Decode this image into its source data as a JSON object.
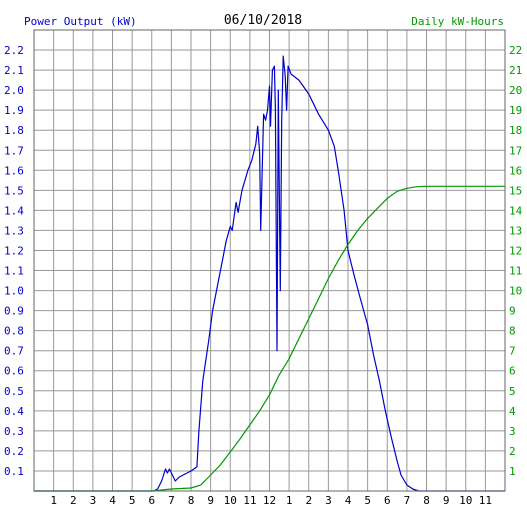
{
  "chart_data": {
    "type": "line",
    "title": "06/10/2018",
    "left_axis_label": "Power Output (kW)",
    "right_axis_label": "Daily kW-Hours",
    "x_tick_labels": [
      "1",
      "2",
      "3",
      "4",
      "5",
      "6",
      "7",
      "8",
      "9",
      "10",
      "11",
      "12",
      "1",
      "2",
      "3",
      "4",
      "5",
      "6",
      "7",
      "8",
      "9",
      "10",
      "11"
    ],
    "xlim": [
      0,
      24
    ],
    "ylim_left": [
      0,
      2.3
    ],
    "ylim_right": [
      0,
      23
    ],
    "left_ticks": [
      "0.1",
      "0.2",
      "0.3",
      "0.4",
      "0.5",
      "0.6",
      "0.7",
      "0.8",
      "0.9",
      "1.0",
      "1.1",
      "1.2",
      "1.3",
      "1.4",
      "1.5",
      "1.6",
      "1.7",
      "1.8",
      "1.9",
      "2.0",
      "2.1",
      "2.2"
    ],
    "right_ticks": [
      "1",
      "2",
      "3",
      "4",
      "5",
      "6",
      "7",
      "8",
      "9",
      "10",
      "11",
      "12",
      "13",
      "14",
      "15",
      "16",
      "17",
      "18",
      "19",
      "20",
      "21",
      "22"
    ],
    "grid": true,
    "colors": {
      "power": "#0000cc",
      "energy": "#009900",
      "grid": "#999999",
      "frame": "#666666"
    },
    "series": [
      {
        "axis": "left",
        "color": "#0000cc",
        "points": [
          [
            0,
            0
          ],
          [
            6.1,
            0
          ],
          [
            6.3,
            0.01
          ],
          [
            6.5,
            0.05
          ],
          [
            6.7,
            0.11
          ],
          [
            6.8,
            0.09
          ],
          [
            6.9,
            0.11
          ],
          [
            7.0,
            0.09
          ],
          [
            7.2,
            0.05
          ],
          [
            7.4,
            0.07
          ],
          [
            7.6,
            0.08
          ],
          [
            7.8,
            0.09
          ],
          [
            8.0,
            0.1
          ],
          [
            8.3,
            0.12
          ],
          [
            8.4,
            0.3
          ],
          [
            8.6,
            0.55
          ],
          [
            8.9,
            0.75
          ],
          [
            9.1,
            0.9
          ],
          [
            9.4,
            1.05
          ],
          [
            9.6,
            1.15
          ],
          [
            9.8,
            1.25
          ],
          [
            10.0,
            1.32
          ],
          [
            10.1,
            1.3
          ],
          [
            10.3,
            1.44
          ],
          [
            10.4,
            1.39
          ],
          [
            10.6,
            1.5
          ],
          [
            10.9,
            1.6
          ],
          [
            11.1,
            1.65
          ],
          [
            11.3,
            1.73
          ],
          [
            11.4,
            1.82
          ],
          [
            11.5,
            1.68
          ],
          [
            11.55,
            1.3
          ],
          [
            11.7,
            1.88
          ],
          [
            11.8,
            1.85
          ],
          [
            11.9,
            1.9
          ],
          [
            12.0,
            2.02
          ],
          [
            12.05,
            1.82
          ],
          [
            12.15,
            2.1
          ],
          [
            12.25,
            2.12
          ],
          [
            12.3,
            1.9
          ],
          [
            12.38,
            0.7
          ],
          [
            12.45,
            2.0
          ],
          [
            12.5,
            1.5
          ],
          [
            12.55,
            1.0
          ],
          [
            12.62,
            1.85
          ],
          [
            12.7,
            2.17
          ],
          [
            12.8,
            2.07
          ],
          [
            12.87,
            1.9
          ],
          [
            12.95,
            2.12
          ],
          [
            13.1,
            2.08
          ],
          [
            13.5,
            2.05
          ],
          [
            14.0,
            1.98
          ],
          [
            14.5,
            1.88
          ],
          [
            15.0,
            1.8
          ],
          [
            15.3,
            1.72
          ],
          [
            15.5,
            1.6
          ],
          [
            15.8,
            1.4
          ],
          [
            16.0,
            1.2
          ],
          [
            16.3,
            1.08
          ],
          [
            16.6,
            0.97
          ],
          [
            17.0,
            0.83
          ],
          [
            17.3,
            0.68
          ],
          [
            17.6,
            0.55
          ],
          [
            17.9,
            0.4
          ],
          [
            18.2,
            0.27
          ],
          [
            18.5,
            0.15
          ],
          [
            18.7,
            0.08
          ],
          [
            19.0,
            0.03
          ],
          [
            19.3,
            0.01
          ],
          [
            19.6,
            0
          ],
          [
            24,
            0
          ]
        ]
      },
      {
        "axis": "right",
        "color": "#009900",
        "points": [
          [
            0,
            0
          ],
          [
            6.0,
            0
          ],
          [
            7.0,
            0.1
          ],
          [
            8.0,
            0.15
          ],
          [
            8.5,
            0.3
          ],
          [
            9.0,
            0.8
          ],
          [
            9.5,
            1.3
          ],
          [
            10.0,
            1.95
          ],
          [
            10.5,
            2.6
          ],
          [
            11.0,
            3.3
          ],
          [
            11.5,
            4.0
          ],
          [
            12.0,
            4.8
          ],
          [
            12.5,
            5.8
          ],
          [
            13.0,
            6.6
          ],
          [
            13.5,
            7.6
          ],
          [
            14.0,
            8.6
          ],
          [
            14.5,
            9.6
          ],
          [
            15.0,
            10.6
          ],
          [
            15.5,
            11.5
          ],
          [
            16.0,
            12.3
          ],
          [
            16.5,
            13.0
          ],
          [
            17.0,
            13.6
          ],
          [
            17.5,
            14.1
          ],
          [
            18.0,
            14.6
          ],
          [
            18.5,
            14.95
          ],
          [
            19.0,
            15.1
          ],
          [
            19.5,
            15.18
          ],
          [
            20.0,
            15.2
          ],
          [
            24,
            15.2
          ]
        ]
      }
    ]
  }
}
